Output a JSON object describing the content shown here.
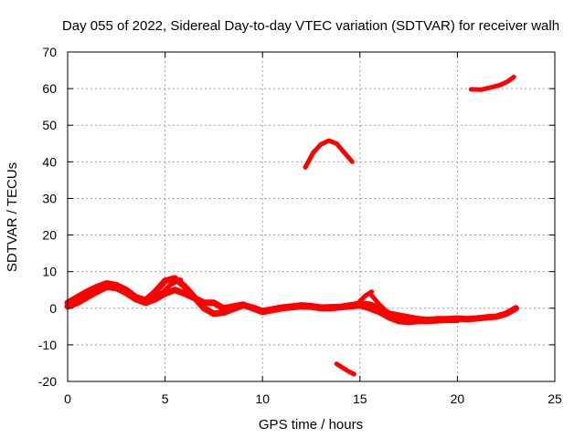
{
  "chart_data": {
    "type": "scatter",
    "title": "Day 055 of 2022, Sidereal Day-to-day VTEC variation (SDTVAR) for receiver walh",
    "xlabel": "GPS time / hours",
    "ylabel": "SDTVAR / TECUs",
    "xlim": [
      0,
      25
    ],
    "ylim": [
      -20,
      70
    ],
    "xticks": [
      "0",
      "5",
      "10",
      "15",
      "20",
      "25"
    ],
    "yticks": [
      "-20",
      "-10",
      "0",
      "10",
      "20",
      "30",
      "40",
      "50",
      "60",
      "70"
    ],
    "grid": true,
    "legend": "none",
    "series_color": "#ff0000",
    "series": [
      {
        "name": "main-band",
        "x": [
          0.0,
          0.5,
          1.0,
          1.5,
          2.0,
          2.5,
          3.0,
          3.5,
          4.0,
          4.5,
          5.0,
          5.5,
          6.0,
          6.5,
          7.0,
          7.5,
          8.0,
          8.5,
          9.0,
          9.5,
          10.0,
          10.5,
          11.0,
          11.5,
          12.0,
          12.5,
          13.0,
          13.5,
          14.0,
          14.5,
          15.0,
          15.5,
          16.0,
          16.5,
          17.0,
          17.5,
          18.0,
          18.5,
          19.0,
          19.5,
          20.0,
          20.5,
          21.0,
          21.5,
          22.0,
          22.5,
          23.0
        ],
        "y": [
          1.5,
          3.0,
          4.5,
          5.8,
          6.8,
          6.3,
          5.0,
          3.0,
          2.2,
          4.5,
          7.5,
          8.2,
          6.0,
          3.0,
          0.0,
          -1.5,
          -1.2,
          -0.2,
          0.8,
          0.2,
          -0.8,
          -0.3,
          0.2,
          0.5,
          0.8,
          0.6,
          0.2,
          0.3,
          0.4,
          0.8,
          1.2,
          1.0,
          0.0,
          -1.5,
          -2.0,
          -2.5,
          -3.0,
          -3.2,
          -3.0,
          -3.0,
          -2.8,
          -3.0,
          -2.8,
          -2.5,
          -2.3,
          -1.5,
          0.0
        ]
      },
      {
        "name": "lower-band",
        "x": [
          0.0,
          0.5,
          1.0,
          1.5,
          2.0,
          2.5,
          3.0,
          3.5,
          4.0,
          4.5,
          5.0,
          5.5,
          6.0,
          6.5,
          7.0,
          7.5,
          8.0,
          8.5,
          9.0,
          9.5,
          10.0,
          10.5,
          11.0,
          11.5,
          12.0,
          12.5,
          13.0,
          13.5,
          14.0,
          14.5,
          15.0,
          15.5,
          16.0,
          16.5,
          17.0,
          17.5,
          18.0,
          18.5,
          19.0,
          19.5,
          20.0
        ],
        "y": [
          0.5,
          1.5,
          3.0,
          4.5,
          5.8,
          5.5,
          4.2,
          2.5,
          1.5,
          2.5,
          4.0,
          5.0,
          4.0,
          2.8,
          1.5,
          1.5,
          0.0,
          0.5,
          1.0,
          0.0,
          -1.0,
          -0.5,
          0.0,
          0.3,
          0.5,
          0.4,
          0.0,
          0.0,
          0.3,
          0.5,
          0.8,
          0.0,
          -1.0,
          -2.5,
          -3.5,
          -3.8,
          -3.5,
          -3.5,
          -3.3,
          -3.2,
          -3.2
        ]
      },
      {
        "name": "arc-peak",
        "x": [
          12.2,
          12.6,
          13.0,
          13.4,
          13.8,
          14.2,
          14.6
        ],
        "y": [
          38.5,
          42.5,
          44.8,
          45.8,
          45.0,
          42.5,
          40.0
        ]
      },
      {
        "name": "negative-segment",
        "x": [
          13.8,
          14.1,
          14.4,
          14.7
        ],
        "y": [
          -15.2,
          -16.2,
          -17.2,
          -18.0
        ]
      },
      {
        "name": "high-segment",
        "x": [
          20.7,
          21.2,
          21.7,
          22.2,
          22.6,
          22.9
        ],
        "y": [
          59.8,
          59.7,
          60.3,
          61.0,
          62.0,
          63.2
        ]
      },
      {
        "name": "spike-a",
        "x": [
          4.2,
          4.8,
          5.3,
          5.8
        ],
        "y": [
          1.8,
          4.0,
          6.5,
          7.8
        ]
      },
      {
        "name": "spike-b",
        "x": [
          15.0,
          15.3,
          15.6
        ],
        "y": [
          2.0,
          3.5,
          4.5
        ]
      },
      {
        "name": "spike-c",
        "x": [
          15.6,
          16.0,
          16.5,
          17.0
        ],
        "y": [
          3.5,
          1.0,
          -1.5,
          -3.5
        ]
      }
    ]
  }
}
